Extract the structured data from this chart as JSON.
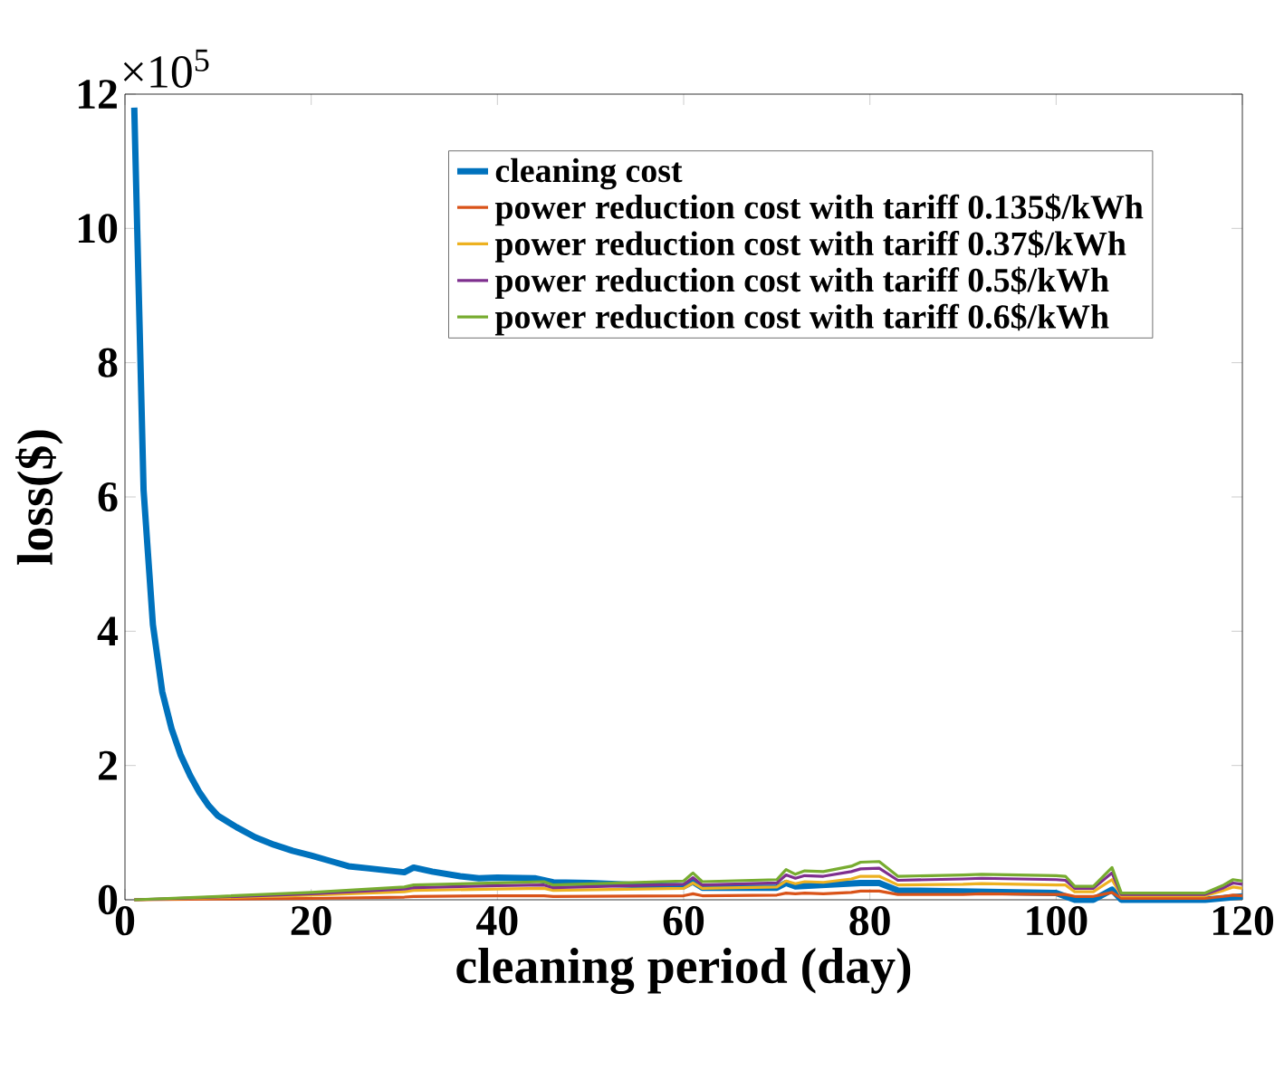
{
  "chart_data": {
    "type": "line",
    "xlabel": "cleaning period (day)",
    "ylabel": "loss($)",
    "xlim": [
      0,
      120
    ],
    "xticks": [
      0,
      20,
      40,
      60,
      80,
      100,
      120
    ],
    "ylim": [
      0,
      12
    ],
    "yticks": [
      0,
      2,
      4,
      6,
      8,
      10,
      12
    ],
    "annotations": [
      "×10$^{5}$"
    ],
    "legend": "top right",
    "series": [
      {
        "name": "cleaning cost",
        "color": "#0072bd",
        "x": [
          1,
          2,
          3,
          4,
          5,
          6,
          7,
          8,
          9,
          10,
          12,
          14,
          16,
          18,
          20,
          22,
          24,
          26,
          28,
          30,
          31,
          33,
          36,
          38,
          40,
          44,
          46,
          50,
          55,
          60,
          61,
          62,
          70,
          71,
          72,
          79,
          81,
          83,
          100,
          102,
          104,
          106,
          107,
          116,
          120
        ],
        "values": [
          11.8,
          6.1,
          4.1,
          3.1,
          2.55,
          2.15,
          1.85,
          1.6,
          1.4,
          1.25,
          1.08,
          0.93,
          0.82,
          0.73,
          0.66,
          0.58,
          0.5,
          0.47,
          0.44,
          0.41,
          0.48,
          0.42,
          0.35,
          0.32,
          0.33,
          0.32,
          0.26,
          0.25,
          0.22,
          0.2,
          0.27,
          0.18,
          0.18,
          0.25,
          0.2,
          0.25,
          0.25,
          0.14,
          0.1,
          0,
          0,
          0.15,
          0,
          0,
          0.05
        ]
      },
      {
        "name": "power reduction cost with tariff 0.135$/kWh",
        "color": "#d95319",
        "x": [
          1,
          10,
          20,
          30,
          31,
          40,
          45,
          46,
          60,
          61,
          62,
          70,
          71,
          72,
          73,
          75,
          78,
          79,
          81,
          83,
          90,
          92,
          100,
          101,
          102,
          104,
          106,
          107,
          116,
          118,
          119,
          120
        ],
        "values": [
          0,
          0.01,
          0.02,
          0.04,
          0.05,
          0.06,
          0.06,
          0.05,
          0.06,
          0.09,
          0.06,
          0.07,
          0.1,
          0.09,
          0.1,
          0.09,
          0.11,
          0.13,
          0.13,
          0.08,
          0.08,
          0.09,
          0.08,
          0.08,
          0.05,
          0.05,
          0.11,
          0.02,
          0.02,
          0.05,
          0.07,
          0.06
        ]
      },
      {
        "name": "power reduction cost with tariff 0.37$/kWh",
        "color": "#edb120",
        "x": [
          1,
          10,
          20,
          30,
          31,
          40,
          45,
          46,
          60,
          61,
          62,
          70,
          71,
          72,
          73,
          75,
          78,
          79,
          81,
          83,
          90,
          92,
          100,
          101,
          102,
          104,
          106,
          107,
          116,
          118,
          119,
          120
        ],
        "values": [
          0,
          0.03,
          0.07,
          0.12,
          0.14,
          0.16,
          0.17,
          0.14,
          0.17,
          0.25,
          0.17,
          0.19,
          0.28,
          0.24,
          0.27,
          0.26,
          0.31,
          0.35,
          0.35,
          0.22,
          0.23,
          0.24,
          0.22,
          0.22,
          0.12,
          0.12,
          0.3,
          0.06,
          0.06,
          0.14,
          0.19,
          0.17
        ]
      },
      {
        "name": "power reduction cost with tariff 0.5$/kWh",
        "color": "#7e2f8e",
        "x": [
          1,
          10,
          20,
          30,
          31,
          40,
          45,
          46,
          60,
          61,
          62,
          70,
          71,
          72,
          73,
          75,
          78,
          79,
          81,
          83,
          90,
          92,
          100,
          101,
          102,
          104,
          106,
          107,
          116,
          118,
          119,
          120
        ],
        "values": [
          0,
          0.04,
          0.09,
          0.16,
          0.18,
          0.21,
          0.22,
          0.18,
          0.23,
          0.33,
          0.22,
          0.25,
          0.37,
          0.32,
          0.36,
          0.35,
          0.42,
          0.46,
          0.47,
          0.29,
          0.31,
          0.32,
          0.3,
          0.29,
          0.17,
          0.17,
          0.4,
          0.08,
          0.08,
          0.18,
          0.25,
          0.23
        ]
      },
      {
        "name": "power reduction cost with tariff 0.6$/kWh",
        "color": "#77ac30",
        "x": [
          1,
          10,
          20,
          30,
          31,
          40,
          45,
          46,
          60,
          61,
          62,
          70,
          71,
          72,
          73,
          75,
          78,
          79,
          81,
          83,
          90,
          92,
          100,
          101,
          102,
          104,
          106,
          107,
          116,
          118,
          119,
          120
        ],
        "values": [
          0,
          0.05,
          0.11,
          0.19,
          0.22,
          0.25,
          0.27,
          0.22,
          0.28,
          0.4,
          0.27,
          0.3,
          0.45,
          0.38,
          0.43,
          0.42,
          0.5,
          0.56,
          0.57,
          0.35,
          0.37,
          0.38,
          0.36,
          0.35,
          0.2,
          0.2,
          0.48,
          0.1,
          0.1,
          0.22,
          0.3,
          0.28
        ]
      }
    ]
  }
}
